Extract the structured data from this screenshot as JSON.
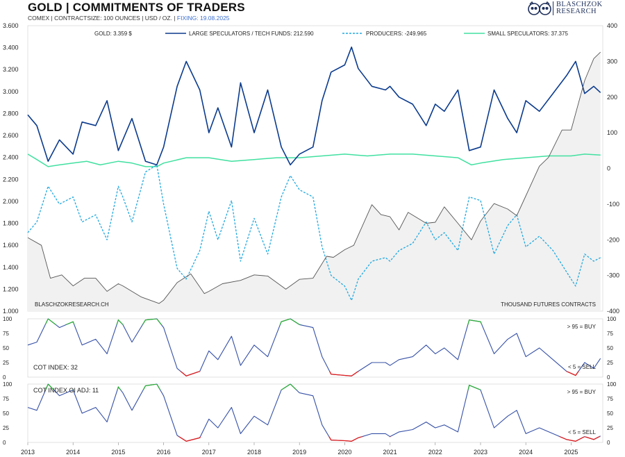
{
  "header": {
    "title": "GOLD | COMMITMENTS OF TRADERS",
    "subtitle": "COMEX | CONTRACTSIZE: 100 OUNCES | USD / OZ. |",
    "fixing": "FIXING: 19.08.2025"
  },
  "logo": {
    "line1": "BLASCHZOK",
    "line2": "RESEARCH",
    "icon": "twin-owl-logo-icon"
  },
  "colors": {
    "gold": "#555555",
    "large": "#0a3a8c",
    "producers": "#1fa8e0",
    "small": "#40e0a0",
    "cot": "#3550a6",
    "buy": "#2fae3a",
    "sell": "#e01b1b",
    "signal_text": "#3b6fd1"
  },
  "chart_data": [
    {
      "type": "line",
      "title": "GOLD | COMMITMENTS OF TRADERS",
      "watermark": "BLASCHZOKRESEARCH.CH",
      "right_axis_label": "THOUSAND FUTURES CONTRACTS",
      "x_ticks": [
        "2013",
        "2014",
        "2015",
        "2016",
        "2017",
        "2018",
        "2019",
        "2020",
        "2021",
        "2022",
        "2023",
        "2024",
        "2025"
      ],
      "x_range": [
        2013.0,
        2025.7
      ],
      "y_left_range": [
        1000,
        3600
      ],
      "y_left_ticks": [
        "1.000",
        "1.200",
        "1.400",
        "1.600",
        "1.800",
        "2.000",
        "2.200",
        "2.400",
        "2.600",
        "2.800",
        "3.000",
        "3.200",
        "3.400",
        "3.600"
      ],
      "y_right_range": [
        -400,
        400
      ],
      "y_right_ticks": [
        "-400",
        "-300",
        "-200",
        "-100",
        "0",
        "100",
        "200",
        "300",
        "400"
      ],
      "legend": [
        "GOLD: 3.359 $",
        "LARGE SPECULATORS / TECH FUNDS: 212.590",
        "PRODUCERS: -249.965",
        "SMALL SPECULATORS: 37.375"
      ],
      "series": [
        {
          "name": "GOLD: 3.359 $",
          "axis": "left",
          "x": [
            2013.0,
            2013.3,
            2013.5,
            2013.75,
            2014.0,
            2014.25,
            2014.5,
            2014.75,
            2015.0,
            2015.1,
            2015.5,
            2015.9,
            2016.0,
            2016.3,
            2016.6,
            2016.9,
            2017.0,
            2017.3,
            2017.7,
            2018.0,
            2018.3,
            2018.7,
            2019.0,
            2019.3,
            2019.6,
            2019.75,
            2020.0,
            2020.2,
            2020.6,
            2020.8,
            2021.0,
            2021.2,
            2021.4,
            2021.8,
            2022.0,
            2022.2,
            2022.5,
            2022.8,
            2023.0,
            2023.3,
            2023.6,
            2023.8,
            2024.0,
            2024.3,
            2024.5,
            2024.8,
            2025.0,
            2025.3,
            2025.5,
            2025.65
          ],
          "y": [
            1670,
            1600,
            1300,
            1330,
            1230,
            1300,
            1300,
            1180,
            1250,
            1230,
            1130,
            1070,
            1100,
            1260,
            1340,
            1160,
            1180,
            1250,
            1280,
            1330,
            1320,
            1200,
            1290,
            1300,
            1500,
            1490,
            1560,
            1600,
            1970,
            1880,
            1860,
            1740,
            1900,
            1800,
            1810,
            1950,
            1800,
            1650,
            1820,
            1980,
            1930,
            1870,
            2050,
            2320,
            2400,
            2650,
            2650,
            3100,
            3300,
            3359
          ]
        },
        {
          "name": "LARGE SPECULATORS / TECH FUNDS: 212.590",
          "axis": "right",
          "x": [
            2013.0,
            2013.2,
            2013.45,
            2013.7,
            2014.0,
            2014.2,
            2014.5,
            2014.75,
            2015.0,
            2015.1,
            2015.3,
            2015.6,
            2015.85,
            2016.0,
            2016.3,
            2016.5,
            2016.8,
            2017.0,
            2017.2,
            2017.5,
            2017.7,
            2018.0,
            2018.3,
            2018.6,
            2018.8,
            2019.0,
            2019.3,
            2019.5,
            2019.7,
            2020.0,
            2020.15,
            2020.3,
            2020.6,
            2020.9,
            2021.0,
            2021.2,
            2021.5,
            2021.8,
            2022.0,
            2022.2,
            2022.5,
            2022.75,
            2023.0,
            2023.3,
            2023.6,
            2023.8,
            2024.0,
            2024.3,
            2024.6,
            2024.9,
            2025.1,
            2025.3,
            2025.5,
            2025.65
          ],
          "y": [
            150,
            120,
            20,
            80,
            40,
            130,
            120,
            190,
            50,
            80,
            140,
            20,
            10,
            60,
            230,
            300,
            220,
            100,
            170,
            60,
            240,
            100,
            220,
            60,
            10,
            40,
            60,
            190,
            270,
            290,
            340,
            280,
            230,
            220,
            230,
            200,
            180,
            120,
            180,
            160,
            220,
            50,
            60,
            220,
            140,
            100,
            190,
            160,
            210,
            260,
            300,
            210,
            230,
            212.6
          ]
        },
        {
          "name": "PRODUCERS: -249.965",
          "axis": "right",
          "x": [
            2013.0,
            2013.2,
            2013.45,
            2013.7,
            2014.0,
            2014.2,
            2014.5,
            2014.75,
            2015.0,
            2015.1,
            2015.3,
            2015.6,
            2015.85,
            2016.0,
            2016.3,
            2016.5,
            2016.8,
            2017.0,
            2017.2,
            2017.5,
            2017.7,
            2018.0,
            2018.3,
            2018.6,
            2018.8,
            2019.0,
            2019.3,
            2019.5,
            2019.7,
            2020.0,
            2020.15,
            2020.3,
            2020.6,
            2020.9,
            2021.0,
            2021.2,
            2021.5,
            2021.8,
            2022.0,
            2022.2,
            2022.5,
            2022.75,
            2023.0,
            2023.3,
            2023.6,
            2023.8,
            2024.0,
            2024.3,
            2024.6,
            2024.9,
            2025.1,
            2025.3,
            2025.5,
            2025.65
          ],
          "y": [
            -180,
            -150,
            -50,
            -100,
            -80,
            -150,
            -130,
            -200,
            -50,
            -80,
            -150,
            -10,
            10,
            -100,
            -280,
            -310,
            -230,
            -120,
            -200,
            -90,
            -260,
            -140,
            -240,
            -80,
            -20,
            -60,
            -80,
            -220,
            -300,
            -330,
            -370,
            -310,
            -260,
            -250,
            -260,
            -230,
            -210,
            -150,
            -200,
            -180,
            -230,
            -80,
            -90,
            -240,
            -160,
            -130,
            -220,
            -190,
            -230,
            -290,
            -330,
            -240,
            -260,
            -250
          ]
        },
        {
          "name": "SMALL SPECULATORS: 37.375",
          "axis": "right",
          "x": [
            2013.0,
            2013.2,
            2013.45,
            2013.7,
            2014.0,
            2014.3,
            2014.6,
            2015.0,
            2015.3,
            2015.6,
            2015.85,
            2016.0,
            2016.5,
            2017.0,
            2017.5,
            2018.0,
            2018.5,
            2019.0,
            2019.5,
            2020.0,
            2020.5,
            2021.0,
            2021.5,
            2022.0,
            2022.5,
            2022.8,
            2023.0,
            2023.5,
            2024.0,
            2024.5,
            2025.0,
            2025.3,
            2025.65
          ],
          "y": [
            40,
            25,
            5,
            10,
            15,
            20,
            10,
            20,
            15,
            5,
            5,
            15,
            30,
            30,
            20,
            25,
            30,
            30,
            35,
            40,
            35,
            40,
            40,
            35,
            30,
            10,
            15,
            25,
            30,
            35,
            35,
            40,
            37.4
          ]
        }
      ]
    },
    {
      "type": "line",
      "title": "COT INDEX: 32",
      "y_range": [
        0,
        100
      ],
      "y_ticks": [
        "0",
        "25",
        "50",
        "75",
        "100"
      ],
      "x_range": [
        2013.0,
        2025.7
      ],
      "buy_label": "> 95 = BUY",
      "sell_label": "< 5 = SELL",
      "series": [
        {
          "name": "COT INDEX: 32",
          "x": [
            2013.0,
            2013.2,
            2013.45,
            2013.7,
            2014.0,
            2014.2,
            2014.5,
            2014.75,
            2015.0,
            2015.1,
            2015.3,
            2015.6,
            2015.85,
            2016.0,
            2016.3,
            2016.5,
            2016.8,
            2017.0,
            2017.2,
            2017.5,
            2017.7,
            2018.0,
            2018.3,
            2018.6,
            2018.8,
            2019.0,
            2019.3,
            2019.5,
            2019.7,
            2020.0,
            2020.15,
            2020.3,
            2020.6,
            2020.9,
            2021.0,
            2021.2,
            2021.5,
            2021.8,
            2022.0,
            2022.2,
            2022.5,
            2022.75,
            2023.0,
            2023.3,
            2023.6,
            2023.8,
            2024.0,
            2024.3,
            2024.6,
            2024.9,
            2025.1,
            2025.3,
            2025.5,
            2025.65
          ],
          "y": [
            55,
            60,
            100,
            85,
            95,
            55,
            65,
            40,
            98,
            90,
            60,
            98,
            100,
            85,
            15,
            2,
            10,
            45,
            30,
            70,
            20,
            55,
            35,
            95,
            100,
            90,
            85,
            35,
            5,
            3,
            2,
            10,
            25,
            25,
            20,
            30,
            35,
            55,
            40,
            50,
            30,
            98,
            95,
            40,
            65,
            75,
            35,
            50,
            30,
            10,
            3,
            25,
            15,
            32
          ]
        }
      ]
    },
    {
      "type": "line",
      "title": "COT INDEX OI ADJ: 11",
      "y_range": [
        0,
        100
      ],
      "y_ticks": [
        "0",
        "25",
        "50",
        "75",
        "100"
      ],
      "x_range": [
        2013.0,
        2025.7
      ],
      "buy_label": "> 95 = BUY",
      "sell_label": "< 5 = SELL",
      "series": [
        {
          "name": "COT INDEX OI ADJ: 11",
          "x": [
            2013.0,
            2013.2,
            2013.45,
            2013.7,
            2014.0,
            2014.2,
            2014.5,
            2014.75,
            2015.0,
            2015.1,
            2015.3,
            2015.6,
            2015.85,
            2016.0,
            2016.3,
            2016.5,
            2016.8,
            2017.0,
            2017.2,
            2017.5,
            2017.7,
            2018.0,
            2018.3,
            2018.6,
            2018.8,
            2019.0,
            2019.3,
            2019.5,
            2019.7,
            2020.0,
            2020.15,
            2020.3,
            2020.6,
            2020.9,
            2021.0,
            2021.2,
            2021.5,
            2021.8,
            2022.0,
            2022.2,
            2022.5,
            2022.75,
            2023.0,
            2023.3,
            2023.6,
            2023.8,
            2024.0,
            2024.3,
            2024.6,
            2024.9,
            2025.1,
            2025.3,
            2025.5,
            2025.65
          ],
          "y": [
            60,
            55,
            100,
            80,
            90,
            50,
            60,
            35,
            95,
            85,
            55,
            97,
            100,
            80,
            12,
            2,
            8,
            40,
            25,
            60,
            15,
            45,
            30,
            90,
            100,
            85,
            80,
            30,
            4,
            3,
            2,
            8,
            15,
            15,
            10,
            18,
            22,
            35,
            25,
            30,
            18,
            98,
            90,
            25,
            45,
            55,
            15,
            25,
            15,
            5,
            2,
            10,
            5,
            11
          ]
        }
      ]
    }
  ]
}
